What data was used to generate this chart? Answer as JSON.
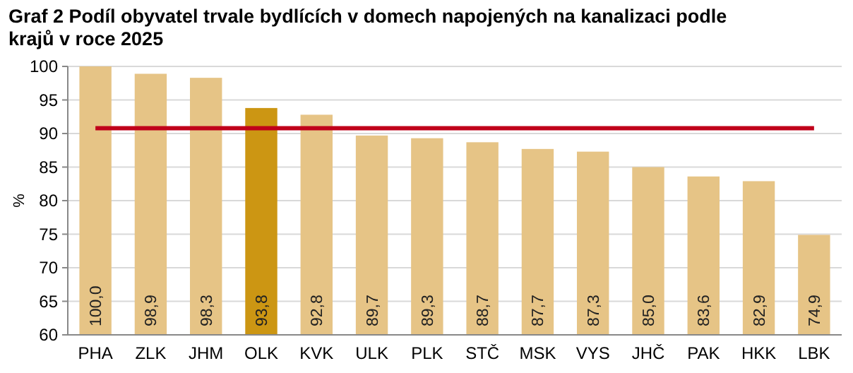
{
  "chart_data": {
    "type": "bar",
    "title": "Graf 2 Podíl obyvatel trvale bydlících v domech napojených na kanalizaci podle krajů v roce 2025",
    "ylabel": "%",
    "categories": [
      "PHA",
      "ZLK",
      "JHM",
      "OLK",
      "KVK",
      "ULK",
      "PLK",
      "STČ",
      "MSK",
      "VYS",
      "JHČ",
      "PAK",
      "HKK",
      "LBK"
    ],
    "values": [
      100.0,
      98.9,
      98.3,
      93.8,
      92.8,
      89.7,
      89.3,
      88.7,
      87.7,
      87.3,
      85.0,
      83.6,
      82.9,
      74.9
    ],
    "value_labels": [
      "100,0",
      "98,9",
      "98,3",
      "93,8",
      "92,8",
      "89,7",
      "89,3",
      "88,7",
      "87,7",
      "87,3",
      "85,0",
      "83,6",
      "82,9",
      "74,9"
    ],
    "colors": [
      "#e6c486",
      "#e6c486",
      "#e6c486",
      "#cc9613",
      "#e6c486",
      "#e6c486",
      "#e6c486",
      "#e6c486",
      "#e6c486",
      "#e6c486",
      "#e6c486",
      "#e6c486",
      "#e6c486",
      "#e6c486"
    ],
    "ylim": [
      60,
      100
    ],
    "yticks": [
      60,
      65,
      70,
      75,
      80,
      85,
      90,
      95,
      100
    ],
    "grid": "y",
    "ref_lines": [
      {
        "axis": "y",
        "value": 90.8,
        "color": "#c0001a"
      }
    ]
  }
}
